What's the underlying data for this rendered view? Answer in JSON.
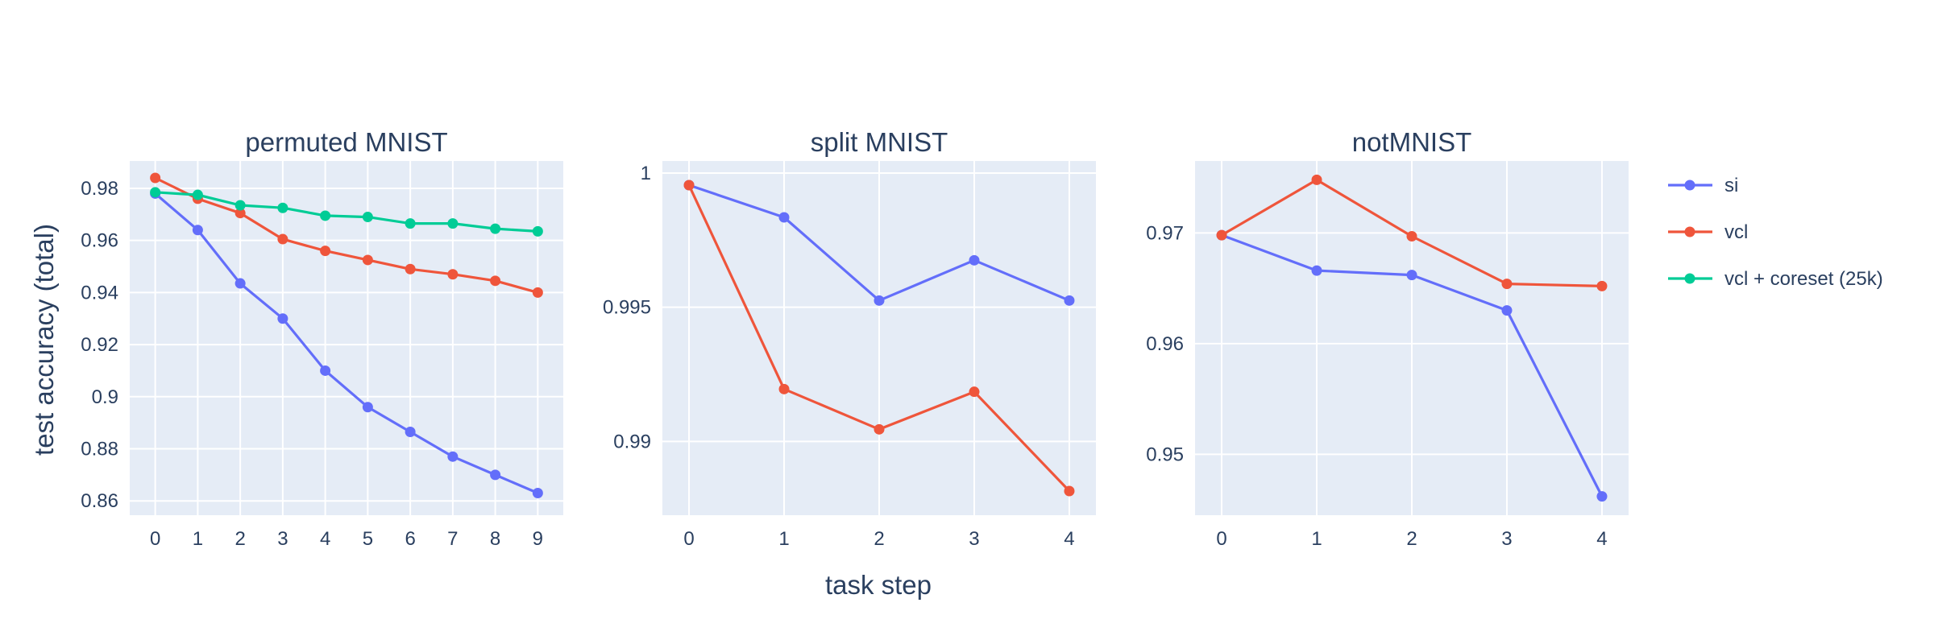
{
  "chart_data": {
    "ylabel": "test accuracy (total)",
    "xlabel": "task step",
    "legend_position": "right",
    "series_styles": [
      {
        "name": "si",
        "color": "#636efa"
      },
      {
        "name": "vcl",
        "color": "#ef553b"
      },
      {
        "name": "vcl + coreset (25k)",
        "color": "#00cc96"
      }
    ],
    "panels": [
      {
        "type": "line",
        "title": "permuted MNIST",
        "x": [
          0,
          1,
          2,
          3,
          4,
          5,
          6,
          7,
          8,
          9
        ],
        "xlim": [
          -0.6,
          9.6
        ],
        "ylim": [
          0.8545,
          0.9905
        ],
        "yticks": [
          0.86,
          0.88,
          0.9,
          0.92,
          0.94,
          0.96,
          0.98
        ],
        "ytick_labels": [
          "0.86",
          "0.88",
          "0.9",
          "0.92",
          "0.94",
          "0.96",
          "0.98"
        ],
        "series": [
          {
            "name": "si",
            "values": [
              0.978,
              0.964,
              0.9435,
              0.93,
              0.91,
              0.896,
              0.8865,
              0.877,
              0.87,
              0.863
            ]
          },
          {
            "name": "vcl",
            "values": [
              0.984,
              0.976,
              0.9705,
              0.9605,
              0.956,
              0.9525,
              0.949,
              0.947,
              0.9445,
              0.94
            ]
          },
          {
            "name": "vcl + coreset (25k)",
            "values": [
              0.9785,
              0.9775,
              0.9735,
              0.9725,
              0.9695,
              0.969,
              0.9665,
              0.9665,
              0.9645,
              0.9635
            ]
          }
        ]
      },
      {
        "type": "line",
        "title": "split MNIST",
        "x": [
          0,
          1,
          2,
          3,
          4
        ],
        "xlim": [
          -0.28,
          4.28
        ],
        "ylim": [
          0.98725,
          1.00045
        ],
        "yticks": [
          0.99,
          0.995,
          1.0
        ],
        "ytick_labels": [
          "0.99",
          "0.995",
          "1"
        ],
        "series": [
          {
            "name": "si",
            "values": [
              0.99955,
              0.99835,
              0.99525,
              0.99675,
              0.99525
            ]
          },
          {
            "name": "vcl",
            "values": [
              0.99955,
              0.99195,
              0.99045,
              0.99185,
              0.98815
            ]
          }
        ]
      },
      {
        "type": "line",
        "title": "notMNIST",
        "x": [
          0,
          1,
          2,
          3,
          4
        ],
        "xlim": [
          -0.28,
          4.28
        ],
        "ylim": [
          0.9445,
          0.9765
        ],
        "yticks": [
          0.95,
          0.96,
          0.97
        ],
        "ytick_labels": [
          "0.95",
          "0.96",
          "0.97"
        ],
        "series": [
          {
            "name": "si",
            "values": [
              0.9698,
              0.9666,
              0.9662,
              0.963,
              0.9462
            ]
          },
          {
            "name": "vcl",
            "values": [
              0.9698,
              0.9748,
              0.9697,
              0.9654,
              0.9652
            ]
          }
        ]
      }
    ]
  }
}
